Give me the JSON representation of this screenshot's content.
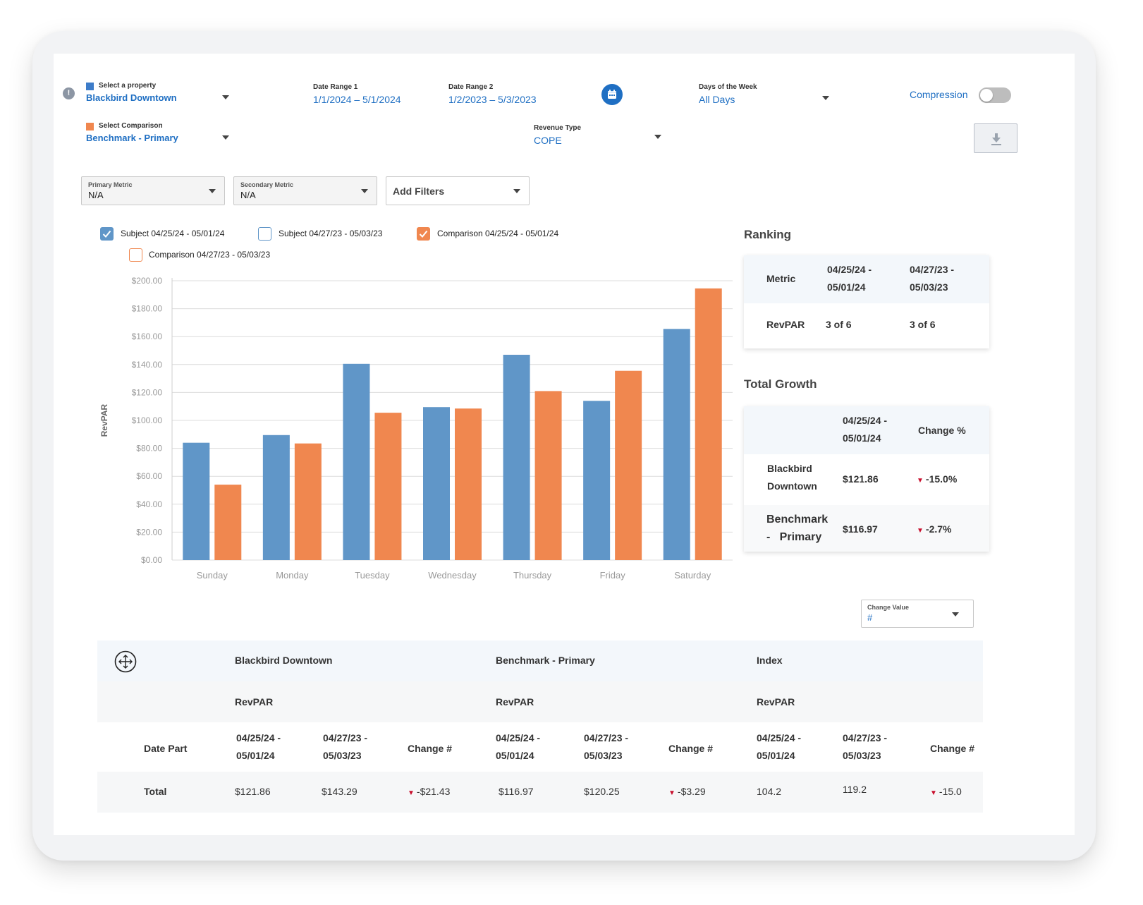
{
  "header": {
    "property": {
      "label": "Select a property",
      "value": "Blackbird Downtown",
      "color": "#3d7cc9"
    },
    "comparison": {
      "label": "Select Comparison",
      "value": "Benchmark - Primary",
      "color": "#f0874f"
    },
    "date_range_1": {
      "label": "Date Range 1",
      "value": "1/1/2024 – 5/1/2024"
    },
    "date_range_2": {
      "label": "Date Range 2",
      "value": "1/2/2023 – 5/3/2023"
    },
    "days_of_week": {
      "label": "Days of the Week",
      "value": "All Days"
    },
    "revenue_type": {
      "label": "Revenue Type",
      "value": "COPE"
    },
    "compression": {
      "label": "Compression",
      "enabled": false
    }
  },
  "filters": {
    "primary_metric": {
      "label": "Primary Metric",
      "value": "N/A"
    },
    "secondary_metric": {
      "label": "Secondary Metric",
      "value": "N/A"
    },
    "add_filters": "Add Filters"
  },
  "legend": [
    {
      "label": "Subject 04/25/24 - 05/01/24",
      "checked": true,
      "color": "#6096c8"
    },
    {
      "label": "Subject 04/27/23 - 05/03/23",
      "checked": false,
      "color": "#6096c8"
    },
    {
      "label": "Comparison 04/25/24 - 05/01/24",
      "checked": true,
      "color": "#f0874f"
    },
    {
      "label": "Comparison 04/27/23 - 05/03/23",
      "checked": false,
      "color": "#f0874f"
    }
  ],
  "chart_data": {
    "type": "bar",
    "categories": [
      "Sunday",
      "Monday",
      "Tuesday",
      "Wednesday",
      "Thursday",
      "Friday",
      "Saturday"
    ],
    "series": [
      {
        "name": "Subject 04/25/24 - 05/01/24",
        "values": [
          84,
          89.5,
          140.5,
          109.5,
          147,
          114,
          165.5
        ],
        "color": "#6096c8"
      },
      {
        "name": "Comparison 04/25/24 - 05/01/24",
        "values": [
          54,
          83.5,
          105.5,
          108.5,
          121,
          135.5,
          194.5
        ],
        "color": "#f0874f"
      }
    ],
    "ylabel": "RevPAR",
    "ylim": [
      0,
      200
    ],
    "yticks": [
      "$0.00",
      "$20.00",
      "$40.00",
      "$60.00",
      "$80.00",
      "$100.00",
      "$120.00",
      "$140.00",
      "$160.00",
      "$180.00",
      "$200.00"
    ],
    "grid": true
  },
  "ranking": {
    "title": "Ranking",
    "headers": [
      "Metric",
      "04/25/24 -\n05/01/24",
      "04/27/23 -\n05/03/23"
    ],
    "rows": [
      [
        "RevPAR",
        "3 of 6",
        "3 of 6"
      ]
    ]
  },
  "total_growth": {
    "title": "Total Growth",
    "headers": [
      "",
      "04/25/24 -\n05/01/24",
      "Change %"
    ],
    "rows": [
      [
        "Blackbird\nDowntown",
        "$121.86",
        "-15.0%"
      ],
      [
        "Benchmark\n-   Primary",
        "$116.97",
        "-2.7%"
      ]
    ]
  },
  "change_value": {
    "label": "Change Value",
    "value": "#"
  },
  "table": {
    "groups": [
      "Blackbird Downtown",
      "Benchmark - Primary",
      "Index"
    ],
    "metric": "RevPAR",
    "date_part": "Date Part",
    "col_headers": [
      "04/25/24 -\n05/01/24",
      "04/27/23 -\n05/03/23",
      "Change #"
    ],
    "total": {
      "label": "Total",
      "values": [
        "$121.86",
        "$143.29",
        "-$21.43",
        "$116.97",
        "$120.25",
        "-$3.29",
        "104.2",
        "119.2",
        "-15.0"
      ]
    }
  },
  "colors": {
    "accent_blue": "#1f6fc3",
    "down_red": "#c8102e",
    "subject": "#6096c8",
    "comparison": "#f0874f"
  }
}
